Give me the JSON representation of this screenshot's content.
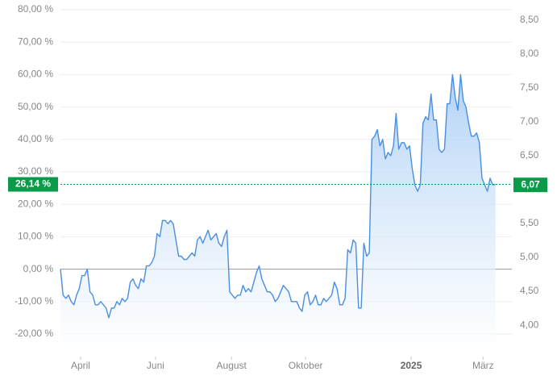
{
  "chart_data": {
    "type": "line",
    "series": [
      {
        "name": "Performance",
        "color": "#4a8fe0",
        "values": [
          0,
          -8,
          -9,
          -8,
          -10,
          -11,
          -8,
          -6,
          -2,
          -2,
          0,
          -7,
          -8,
          -11,
          -11,
          -10,
          -11,
          -12,
          -15,
          -12,
          -12,
          -10,
          -11,
          -9,
          -10,
          -9,
          -4,
          -3,
          -5,
          -6,
          -3,
          -4,
          1,
          1,
          2,
          4,
          11,
          10,
          15,
          15,
          14,
          15,
          14,
          9,
          4,
          4,
          3,
          3,
          4,
          5,
          4,
          9,
          10,
          8,
          10,
          12,
          9,
          10,
          11,
          8,
          7,
          10,
          12,
          -7,
          -8,
          -9,
          -8,
          -8,
          -5,
          -7,
          -6,
          -7,
          -4,
          -1,
          1,
          -3,
          -5,
          -7,
          -7,
          -8,
          -10,
          -9,
          -7,
          -5,
          -6,
          -7,
          -10,
          -10,
          -10,
          -12,
          -13,
          -8,
          -7,
          -11,
          -10,
          -8,
          -11,
          -11,
          -9,
          -10,
          -9,
          -8,
          -4,
          -6,
          -11,
          -11,
          -9,
          6,
          5,
          9,
          8,
          -12,
          -12,
          8,
          4,
          5,
          40,
          41,
          43,
          38,
          40,
          34,
          36,
          35,
          38,
          48,
          37,
          39,
          39,
          37,
          38,
          31,
          26,
          24,
          26,
          45,
          47,
          46,
          54,
          46,
          46,
          37,
          36,
          37,
          51,
          51,
          60,
          53,
          49,
          60,
          52,
          50,
          45,
          41,
          41,
          42,
          39,
          28,
          26,
          24,
          28,
          26,
          26.14
        ]
      }
    ],
    "xlim": [
      0,
      163
    ],
    "xticks": [
      {
        "value": 7.5,
        "label": "April"
      },
      {
        "value": 35.4,
        "label": "Juni"
      },
      {
        "value": 63.7,
        "label": "August"
      },
      {
        "value": 91.3,
        "label": "Oktober"
      },
      {
        "value": 130.6,
        "label": "2025"
      },
      {
        "value": 157.4,
        "label": "März"
      }
    ],
    "ylim": [
      -20,
      80
    ],
    "yticks": [
      {
        "value": 80,
        "label": "80,00 %"
      },
      {
        "value": 70,
        "label": "70,00 %"
      },
      {
        "value": 60,
        "label": "60,00 %"
      },
      {
        "value": 50,
        "label": "50,00 %"
      },
      {
        "value": 40,
        "label": "40,00 %"
      },
      {
        "value": 30,
        "label": "30,00 %"
      },
      {
        "value": 20,
        "label": "20,00 %"
      },
      {
        "value": 10,
        "label": "10,00 %"
      },
      {
        "value": 0,
        "label": "0,00 %"
      },
      {
        "value": -10,
        "label": "-10,00 %"
      },
      {
        "value": -20,
        "label": "-20,00 %"
      }
    ],
    "y2lim": [
      3.87,
      8.655
    ],
    "y2ticks": [
      {
        "value": 8.5,
        "label": "8,50"
      },
      {
        "value": 8,
        "label": "8,00"
      },
      {
        "value": 7.5,
        "label": "7,50"
      },
      {
        "value": 7,
        "label": "7,00"
      },
      {
        "value": 6.5,
        "label": "6,50"
      },
      {
        "value": 5.5,
        "label": "5,50"
      },
      {
        "value": 5,
        "label": "5,00"
      },
      {
        "value": 4.5,
        "label": "4,50"
      },
      {
        "value": 4,
        "label": "4,00"
      }
    ],
    "current": {
      "value": 26.14,
      "label": "26,14 %"
    },
    "current_price": {
      "value": 6.07,
      "label": "6,07"
    },
    "grid": true
  }
}
